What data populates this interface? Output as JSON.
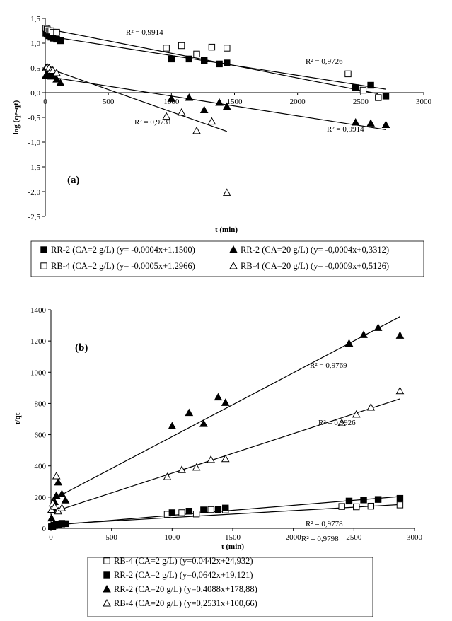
{
  "chart_data": [
    {
      "type": "scatter",
      "panel_label": "(a)",
      "xlabel": "t (min)",
      "ylabel": "log (qe-qt)",
      "xlim": [
        0,
        3000
      ],
      "ylim": [
        -2.5,
        1.5
      ],
      "xticks": [
        "0",
        "500",
        "1000",
        "1500",
        "2000",
        "2500",
        "3000"
      ],
      "yticks": [
        "1,5",
        "1,0",
        "0,5",
        "0,0",
        "-0,5",
        "-1,0",
        "-1,5",
        "-2,0",
        "-2,5"
      ],
      "grid": false,
      "legend_position": "bottom",
      "series": [
        {
          "name": "RR-2 (CA=2 g/L) (y= -0,0004x+1,1500)",
          "marker": "filled-square",
          "x": [
            5,
            15,
            30,
            45,
            60,
            90,
            120,
            1000,
            1140,
            1260,
            1380,
            1440,
            2460,
            2580,
            2700
          ],
          "y": [
            1.2,
            1.18,
            1.15,
            1.12,
            1.1,
            1.08,
            1.05,
            0.68,
            0.68,
            0.65,
            0.58,
            0.6,
            0.1,
            0.15,
            -0.07
          ],
          "fit": {
            "slope": -0.0004,
            "intercept": 1.15,
            "x_range": [
              0,
              2700
            ]
          },
          "r2_label": "R² = 0,9914"
        },
        {
          "name": "RR-2 (CA=20 g/L) (y= -0,0004x+0,3312)",
          "marker": "filled-triangle",
          "x": [
            5,
            15,
            30,
            45,
            60,
            90,
            120,
            1000,
            1140,
            1260,
            1380,
            1440,
            2460,
            2580,
            2700
          ],
          "y": [
            0.35,
            0.38,
            0.36,
            0.33,
            0.35,
            0.27,
            0.2,
            -0.12,
            -0.1,
            -0.35,
            -0.2,
            -0.28,
            -0.6,
            -0.62,
            -0.65
          ],
          "fit": {
            "slope": -0.0004,
            "intercept": 0.3312,
            "x_range": [
              0,
              2700
            ]
          },
          "r2_label": "R² = 0,9914"
        },
        {
          "name": "RB-4 (CA=2 g/L) (y= -0,0005x+1,2966)",
          "marker": "open-square",
          "x": [
            5,
            15,
            30,
            45,
            60,
            90,
            960,
            1080,
            1200,
            1320,
            1440,
            2400,
            2520,
            2640
          ],
          "y": [
            1.3,
            1.28,
            1.25,
            1.25,
            1.22,
            1.22,
            0.9,
            0.95,
            0.78,
            0.92,
            0.9,
            0.38,
            0.05,
            -0.1
          ],
          "fit": {
            "slope": -0.0005,
            "intercept": 1.2966,
            "x_range": [
              0,
              2640
            ]
          },
          "r2_label": "R² = 0,9726"
        },
        {
          "name": "RB-4 (CA=20 g/L) (y= -0,0009x+0,5126)",
          "marker": "open-triangle",
          "x": [
            5,
            15,
            30,
            45,
            60,
            90,
            960,
            1080,
            1200,
            1320,
            1440
          ],
          "y": [
            0.5,
            0.52,
            0.5,
            0.45,
            0.45,
            0.4,
            -0.48,
            -0.4,
            -0.77,
            -0.58,
            -2.02
          ],
          "fit": {
            "slope": -0.0009,
            "intercept": 0.5126,
            "x_range": [
              0,
              1440
            ]
          },
          "r2_label": "R² = 0,9731"
        }
      ]
    },
    {
      "type": "scatter",
      "panel_label": "(b)",
      "xlabel": "t (min)",
      "ylabel": "t/qt",
      "xlim": [
        0,
        3000
      ],
      "ylim": [
        0,
        1400
      ],
      "xticks": [
        "0",
        "500",
        "1000",
        "1500",
        "2000",
        "2500",
        "3000"
      ],
      "yticks": [
        "1400",
        "1200",
        "1000",
        "800",
        "600",
        "400",
        "200",
        "0"
      ],
      "grid": false,
      "legend_position": "bottom",
      "series": [
        {
          "name": "RB-4 (CA=2 g/L) (y=0,0442x+24,932)",
          "marker": "open-square",
          "x": [
            5,
            15,
            30,
            45,
            60,
            90,
            960,
            1080,
            1200,
            1320,
            1440,
            2400,
            2520,
            2640,
            2880
          ],
          "y": [
            10,
            15,
            20,
            25,
            28,
            32,
            90,
            100,
            92,
            120,
            118,
            140,
            138,
            142,
            150
          ],
          "fit": {
            "slope": 0.0442,
            "intercept": 24.932,
            "x_range": [
              0,
              2880
            ]
          },
          "r2_label": "R² = 0,9798"
        },
        {
          "name": "RR-2 (CA=2 g/L) (y=0,0642x+19,121)",
          "marker": "filled-square",
          "x": [
            5,
            15,
            30,
            45,
            60,
            90,
            120,
            1000,
            1140,
            1260,
            1380,
            1440,
            2460,
            2580,
            2700,
            2880
          ],
          "y": [
            8,
            12,
            18,
            22,
            25,
            28,
            30,
            100,
            110,
            118,
            120,
            130,
            175,
            182,
            185,
            192
          ],
          "fit": {
            "slope": 0.0642,
            "intercept": 19.121,
            "x_range": [
              0,
              2880
            ]
          },
          "r2_label": "R² = 0,9778"
        },
        {
          "name": "RR-2 (CA=20 g/L) (y=0,4088x+178,88)",
          "marker": "filled-triangle",
          "x": [
            5,
            15,
            30,
            45,
            60,
            90,
            120,
            1000,
            1140,
            1260,
            1380,
            1440,
            2460,
            2580,
            2700,
            2880
          ],
          "y": [
            65,
            130,
            170,
            210,
            295,
            220,
            180,
            655,
            740,
            670,
            840,
            805,
            1185,
            1240,
            1285,
            1235
          ],
          "fit": {
            "slope": 0.4088,
            "intercept": 178.88,
            "x_range": [
              0,
              2880
            ]
          },
          "r2_label": "R² = 0,9769"
        },
        {
          "name": "RB-4 (CA=20 g/L) (y=0,2531x+100,66)",
          "marker": "open-triangle",
          "x": [
            5,
            15,
            30,
            45,
            60,
            90,
            960,
            1080,
            1200,
            1320,
            1440,
            2400,
            2520,
            2640,
            2880
          ],
          "y": [
            120,
            160,
            140,
            335,
            110,
            130,
            330,
            375,
            390,
            440,
            445,
            675,
            730,
            775,
            880
          ],
          "fit": {
            "slope": 0.2531,
            "intercept": 100.66,
            "x_range": [
              0,
              2880
            ]
          },
          "r2_label": "R² = 0,9926"
        }
      ]
    }
  ]
}
